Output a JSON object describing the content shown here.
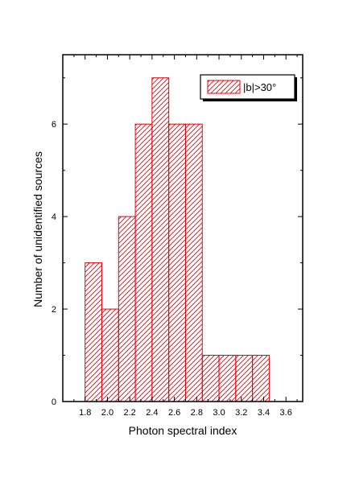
{
  "chart_data": {
    "type": "bar",
    "subtype": "histogram",
    "bin_edges": [
      1.8,
      1.95,
      2.1,
      2.25,
      2.4,
      2.55,
      2.7,
      2.85,
      3.0,
      3.15,
      3.3,
      3.45
    ],
    "counts": [
      3,
      2,
      4,
      6,
      7,
      6,
      6,
      1,
      1,
      1,
      1
    ],
    "series": [
      {
        "name": "|b|>30°",
        "values": [
          3,
          2,
          4,
          6,
          7,
          6,
          6,
          1,
          1,
          1,
          1
        ]
      }
    ],
    "xlabel": "Photon spectral index",
    "ylabel": "Number of unidentified sources",
    "xlim": [
      1.6,
      3.75
    ],
    "ylim": [
      0,
      7.5
    ],
    "xticks": [
      1.8,
      2.0,
      2.2,
      2.4,
      2.6,
      2.8,
      3.0,
      3.2,
      3.4,
      3.6
    ],
    "xtick_labels": [
      "1.8",
      "2.0",
      "2.2",
      "2.4",
      "2.6",
      "2.8",
      "3.0",
      "3.2",
      "3.4",
      "3.6"
    ],
    "yticks": [
      0,
      2,
      4,
      6
    ],
    "ytick_labels": [
      "0",
      "2",
      "4",
      "6"
    ],
    "legend_position": "top-right",
    "fill_pattern": "diagonal hatch",
    "grid": false,
    "color": "#e8000b"
  }
}
